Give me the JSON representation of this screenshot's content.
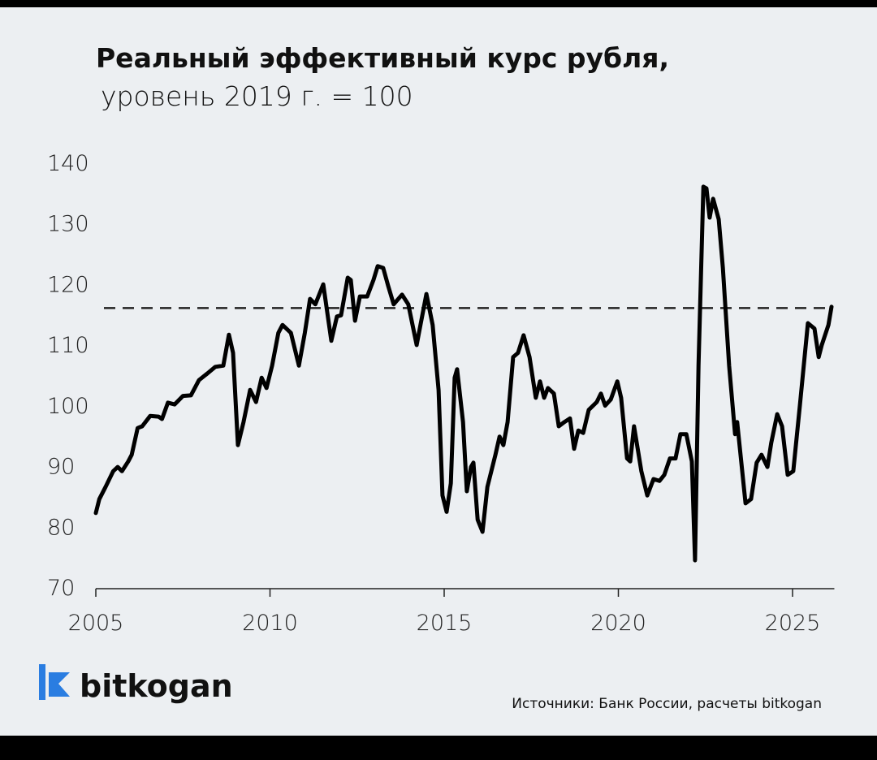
{
  "chart_data": {
    "type": "line",
    "title": "Реальный эффективный курс рубля,",
    "subtitle": "уровень 2019 г. = 100",
    "source": "Источники: Банк России, расчеты bitkogan",
    "logo": "bitkogan",
    "xlim": [
      2005,
      2026.2
    ],
    "xticks": [
      2005,
      2010,
      2015,
      2020,
      2025
    ],
    "ylim": [
      70,
      140
    ],
    "yticks": [
      70,
      80,
      90,
      100,
      110,
      120,
      130,
      140
    ],
    "reference_line": 116,
    "series": [
      {
        "color": "#000000",
        "x": [
          2005.0,
          2005.1,
          2005.28,
          2005.5,
          2005.63,
          2005.75,
          2005.93,
          2006.03,
          2006.2,
          2006.33,
          2006.56,
          2006.8,
          2006.9,
          2007.07,
          2007.26,
          2007.5,
          2007.73,
          2007.96,
          2008.2,
          2008.43,
          2008.66,
          2008.82,
          2008.94,
          2009.08,
          2009.24,
          2009.43,
          2009.6,
          2009.76,
          2009.9,
          2010.06,
          2010.24,
          2010.36,
          2010.6,
          2010.83,
          2011.0,
          2011.15,
          2011.3,
          2011.53,
          2011.76,
          2011.92,
          2012.04,
          2012.23,
          2012.32,
          2012.44,
          2012.58,
          2012.79,
          2012.97,
          2013.09,
          2013.25,
          2013.39,
          2013.55,
          2013.79,
          2013.97,
          2014.21,
          2014.32,
          2014.49,
          2014.67,
          2014.84,
          2014.95,
          2015.07,
          2015.19,
          2015.3,
          2015.37,
          2015.54,
          2015.65,
          2015.77,
          2015.84,
          2015.96,
          2016.1,
          2016.24,
          2016.47,
          2016.59,
          2016.7,
          2016.82,
          2016.98,
          2017.12,
          2017.28,
          2017.45,
          2017.63,
          2017.75,
          2017.87,
          2017.98,
          2018.15,
          2018.29,
          2018.45,
          2018.61,
          2018.73,
          2018.85,
          2018.99,
          2019.15,
          2019.38,
          2019.5,
          2019.62,
          2019.78,
          2019.97,
          2020.08,
          2020.25,
          2020.34,
          2020.45,
          2020.66,
          2020.83,
          2021.01,
          2021.18,
          2021.32,
          2021.48,
          2021.64,
          2021.78,
          2021.95,
          2022.11,
          2022.2,
          2022.3,
          2022.44,
          2022.53,
          2022.62,
          2022.72,
          2022.88,
          2023.0,
          2023.18,
          2023.35,
          2023.41,
          2023.65,
          2023.81,
          2023.97,
          2024.11,
          2024.28,
          2024.39,
          2024.56,
          2024.7,
          2024.86,
          2025.02,
          2025.21,
          2025.44,
          2025.63,
          2025.75,
          2025.84,
          2026.03,
          2026.12
        ],
        "values": [
          82.2,
          84.5,
          86.5,
          89.1,
          89.8,
          89.1,
          90.7,
          91.8,
          96.2,
          96.5,
          98.2,
          98.1,
          97.7,
          100.4,
          100.1,
          101.5,
          101.6,
          104.1,
          105.2,
          106.3,
          106.5,
          111.6,
          108.6,
          93.4,
          97.2,
          102.5,
          100.5,
          104.5,
          102.8,
          106.5,
          111.9,
          113.2,
          111.9,
          106.5,
          111.9,
          117.5,
          116.6,
          119.9,
          110.6,
          114.6,
          114.8,
          121.0,
          120.6,
          113.9,
          117.9,
          117.9,
          120.6,
          122.9,
          122.6,
          119.7,
          116.6,
          118.2,
          116.6,
          109.9,
          113.2,
          118.3,
          113.2,
          102.5,
          85.1,
          82.4,
          87.1,
          104.5,
          105.9,
          97.2,
          85.8,
          89.8,
          90.5,
          81.1,
          79.1,
          86.5,
          91.8,
          94.8,
          93.4,
          97.2,
          107.9,
          108.6,
          111.5,
          107.9,
          101.2,
          103.9,
          101.2,
          102.8,
          101.9,
          96.5,
          97.2,
          97.8,
          92.8,
          95.8,
          95.4,
          99.2,
          100.5,
          101.9,
          99.9,
          100.9,
          103.9,
          101.2,
          91.2,
          90.7,
          96.5,
          89.1,
          85.1,
          87.8,
          87.5,
          88.5,
          91.2,
          91.2,
          95.2,
          95.2,
          90.7,
          74.4,
          106.5,
          136.0,
          135.7,
          130.9,
          134.0,
          130.6,
          122.6,
          106.5,
          95.2,
          97.2,
          83.8,
          84.5,
          90.5,
          91.8,
          89.8,
          93.8,
          98.5,
          96.5,
          88.5,
          89.1,
          99.9,
          113.5,
          112.6,
          107.9,
          109.9,
          113.2,
          116.2
        ]
      }
    ]
  }
}
